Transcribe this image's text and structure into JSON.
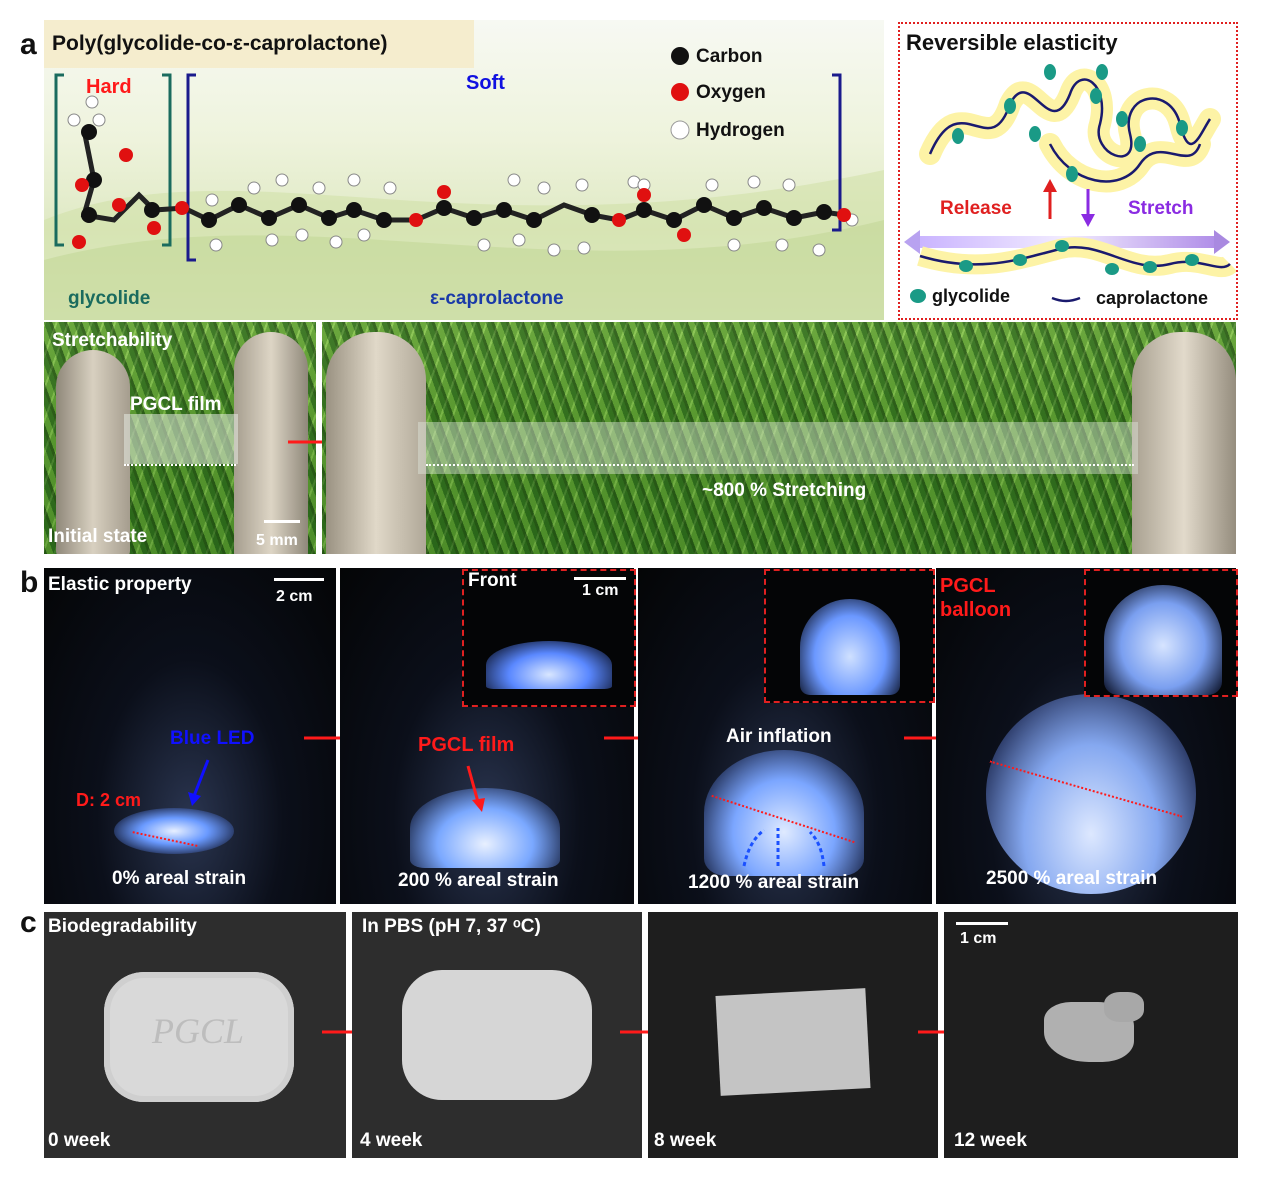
{
  "panel_a": {
    "label": "a",
    "title": "Poly(glycolide-co-ε-caprolactone)",
    "hard": "Hard",
    "soft": "Soft",
    "glycolide": "glycolide",
    "caprolactone": "ε-caprolactone",
    "legend": {
      "carbon": "Carbon",
      "oxygen": "Oxygen",
      "hydrogen": "Hydrogen"
    },
    "elastic_box": {
      "title": "Reversible elasticity",
      "release": "Release",
      "stretch": "Stretch",
      "legend_glycolide": "glycolide",
      "legend_caprolactone": "caprolactone"
    },
    "stretch_photo": {
      "stretchability": "Stretchability",
      "film": "PGCL film",
      "initial": "Initial state",
      "scale": "5 mm",
      "stretching": "~800 % Stretching"
    }
  },
  "panel_b": {
    "label": "b",
    "elastic_property": "Elastic property",
    "scale_main": "2 cm",
    "front": "Front",
    "scale_inset": "1 cm",
    "blue_led": "Blue LED",
    "diameter": "D: 2 cm",
    "pgcl_film": "PGCL film",
    "air_inflation": "Air inflation",
    "balloon": "PGCL balloon",
    "strains": [
      "0% areal strain",
      "200 % areal strain",
      "1200 % areal strain",
      "2500 % areal strain"
    ]
  },
  "panel_c": {
    "label": "c",
    "biodegradability": "Biodegradability",
    "pbs": "In PBS (pH 7, 37 ᵒC)",
    "scale": "1 cm",
    "sample_text": "PGCL",
    "weeks": [
      "0 week",
      "4 week",
      "8 week",
      "12 week"
    ]
  },
  "colors": {
    "red_accent": "#ff1a1a",
    "glycolide_teal": "#1a6b5e",
    "caprolactone_navy": "#1a1a8c",
    "blue_led": "#1010ff"
  }
}
